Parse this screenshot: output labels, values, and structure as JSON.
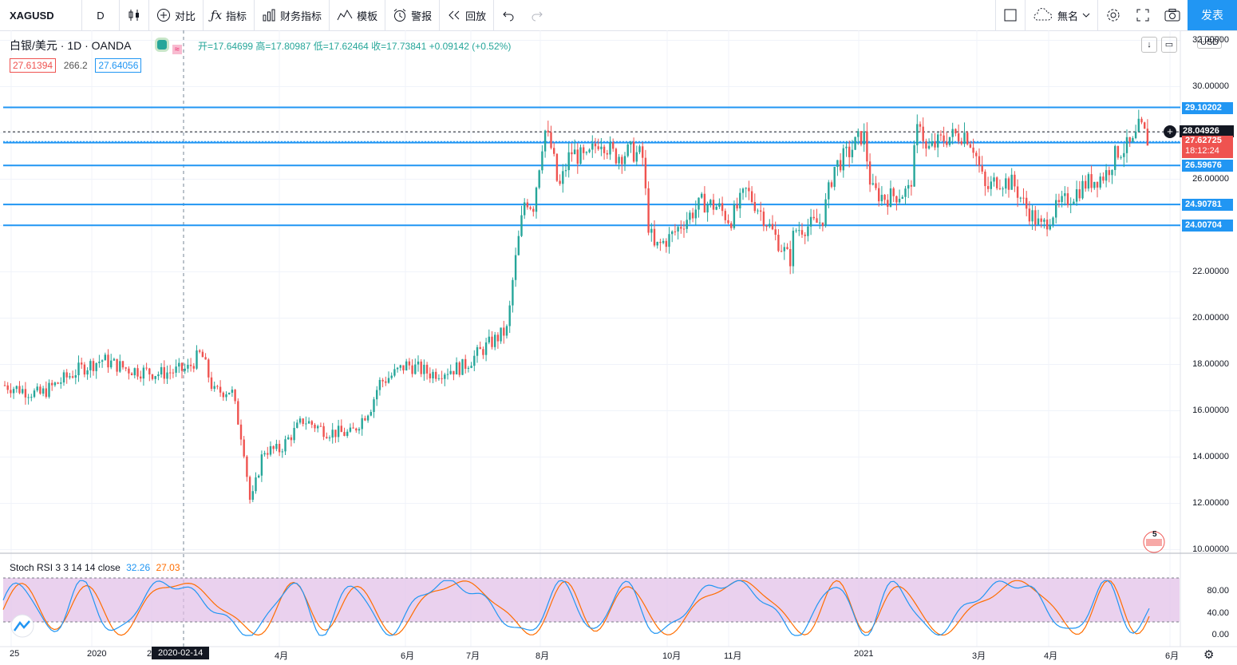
{
  "toolbar": {
    "symbol": "XAGUSD",
    "interval": "D",
    "compare": "对比",
    "indicators": "指标",
    "financials": "财务指标",
    "templates": "模板",
    "alert": "警报",
    "replay": "回放",
    "layout_name": "無名",
    "publish": "发表"
  },
  "legend": {
    "title": "白银/美元 · 1D · OANDA",
    "ohlc": "开=17.64699 高=17.80987 低=17.62464 收=17.73841 +0.09142 (+0.52%)",
    "bid": "27.61394",
    "spread": "266.2",
    "ask": "27.64056"
  },
  "currency": "USD",
  "price_axis": [
    "32.00000",
    "30.00000",
    "28.00000",
    "26.00000",
    "24.00000",
    "22.00000",
    "20.00000",
    "18.00000",
    "16.00000",
    "14.00000",
    "12.00000",
    "10.00000"
  ],
  "hlines": [
    {
      "label": "29.10202",
      "price": 29.10202
    },
    {
      "label": "27.58197",
      "price": 27.58197
    },
    {
      "label": "26.59676",
      "price": 26.59676
    },
    {
      "label": "24.90781",
      "price": 24.90781
    },
    {
      "label": "24.00704",
      "price": 24.00704
    }
  ],
  "last_price": "28.04926",
  "current_price": "27.62725",
  "countdown": "18:12:24",
  "indicator": {
    "name": "Stoch RSI 3 3 14 14 close",
    "k": "32.26",
    "d": "27.03",
    "axis": [
      "80.00",
      "40.00",
      "0.00"
    ]
  },
  "time_axis": [
    "25",
    "2020",
    "2",
    "4月",
    "6月",
    "7月",
    "8月",
    "10月",
    "11月",
    "2021",
    "3月",
    "4月",
    "6月"
  ],
  "crosshair_date": "2020-02-14",
  "events_badge": "5",
  "colors": {
    "up": "#26a69a",
    "down": "#ef5350",
    "hline": "#2196f3",
    "k_line": "#2196f3",
    "d_line": "#ff6d00",
    "band": "#e1bee7"
  }
}
